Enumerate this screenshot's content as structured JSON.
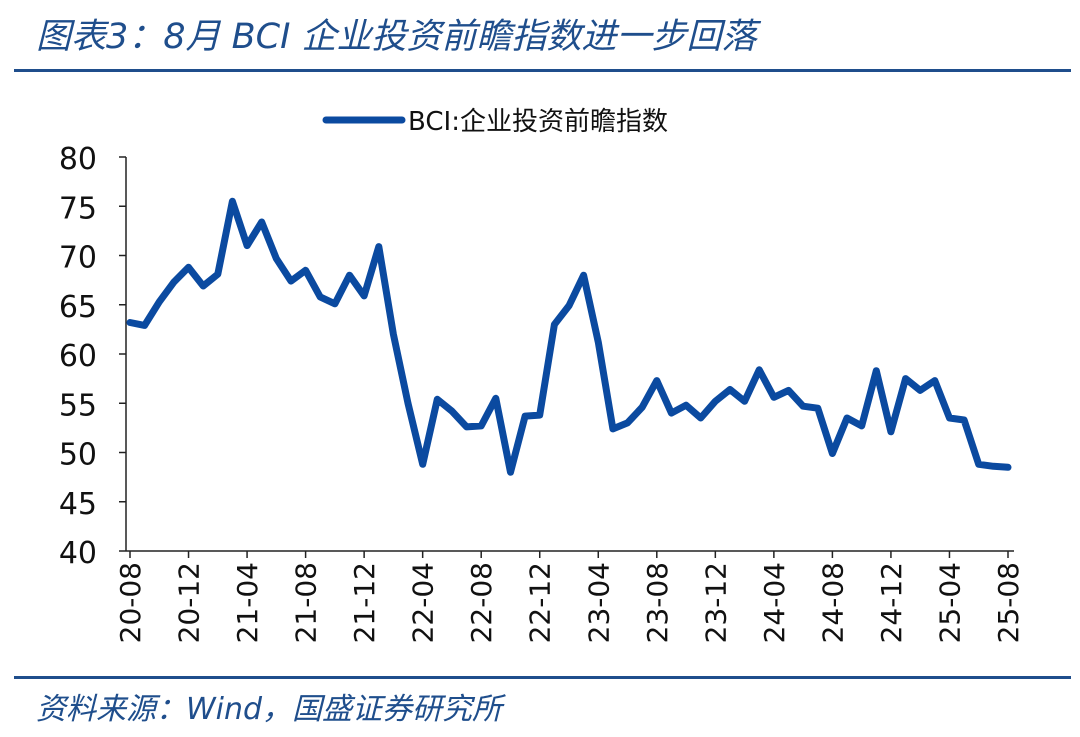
{
  "figure": {
    "title": "图表3：8月 BCI 企业投资前瞻指数进一步回落",
    "source": "资料来源：Wind，国盛证券研究所"
  },
  "colors": {
    "accent": "#1f4e8c",
    "series": "#0b4aa0"
  },
  "chart_data": {
    "type": "line",
    "legend": {
      "position": "top-center",
      "entries": [
        "BCI:企业投资前瞻指数"
      ]
    },
    "grid": false,
    "xlabel": "",
    "ylabel": "",
    "ylim": [
      40,
      80
    ],
    "yticks": [
      40,
      45,
      50,
      55,
      60,
      65,
      70,
      75,
      80
    ],
    "xtick_labels": [
      "20-08",
      "20-12",
      "21-04",
      "21-08",
      "21-12",
      "22-04",
      "22-08",
      "22-12",
      "23-04",
      "23-08",
      "23-12",
      "24-04",
      "24-08",
      "24-12",
      "25-04",
      "25-08"
    ],
    "series": [
      {
        "name": "BCI:企业投资前瞻指数",
        "x": [
          "20-08",
          "20-09",
          "20-10",
          "20-11",
          "20-12",
          "21-01",
          "21-02",
          "21-03",
          "21-04",
          "21-05",
          "21-06",
          "21-07",
          "21-08",
          "21-09",
          "21-10",
          "21-11",
          "21-12",
          "22-01",
          "22-02",
          "22-03",
          "22-04",
          "22-05",
          "22-06",
          "22-07",
          "22-08",
          "22-09",
          "22-10",
          "22-11",
          "22-12",
          "23-01",
          "23-02",
          "23-03",
          "23-04",
          "23-05",
          "23-06",
          "23-07",
          "23-08",
          "23-09",
          "23-10",
          "23-11",
          "23-12",
          "24-01",
          "24-02",
          "24-03",
          "24-04",
          "24-05",
          "24-06",
          "24-07",
          "24-08",
          "24-09",
          "24-10",
          "24-11",
          "24-12",
          "25-01",
          "25-02",
          "25-03",
          "25-04",
          "25-05",
          "25-06",
          "25-07",
          "25-08"
        ],
        "values": [
          63.2,
          62.9,
          65.3,
          67.3,
          68.8,
          66.9,
          68.1,
          75.5,
          71.0,
          73.4,
          69.7,
          67.4,
          68.5,
          65.8,
          65.1,
          68.0,
          65.9,
          70.9,
          62.0,
          55.0,
          48.8,
          55.4,
          54.2,
          52.6,
          52.7,
          55.5,
          48.0,
          53.7,
          53.8,
          63.0,
          64.9,
          68.0,
          61.2,
          52.4,
          53.0,
          54.6,
          57.3,
          54.0,
          54.8,
          53.5,
          55.2,
          56.4,
          55.2,
          58.4,
          55.6,
          56.3,
          54.7,
          54.5,
          49.9,
          53.5,
          52.7,
          58.3,
          52.1,
          57.5,
          56.3,
          57.3,
          53.5,
          53.3,
          48.8,
          48.6,
          48.5
        ]
      }
    ]
  }
}
